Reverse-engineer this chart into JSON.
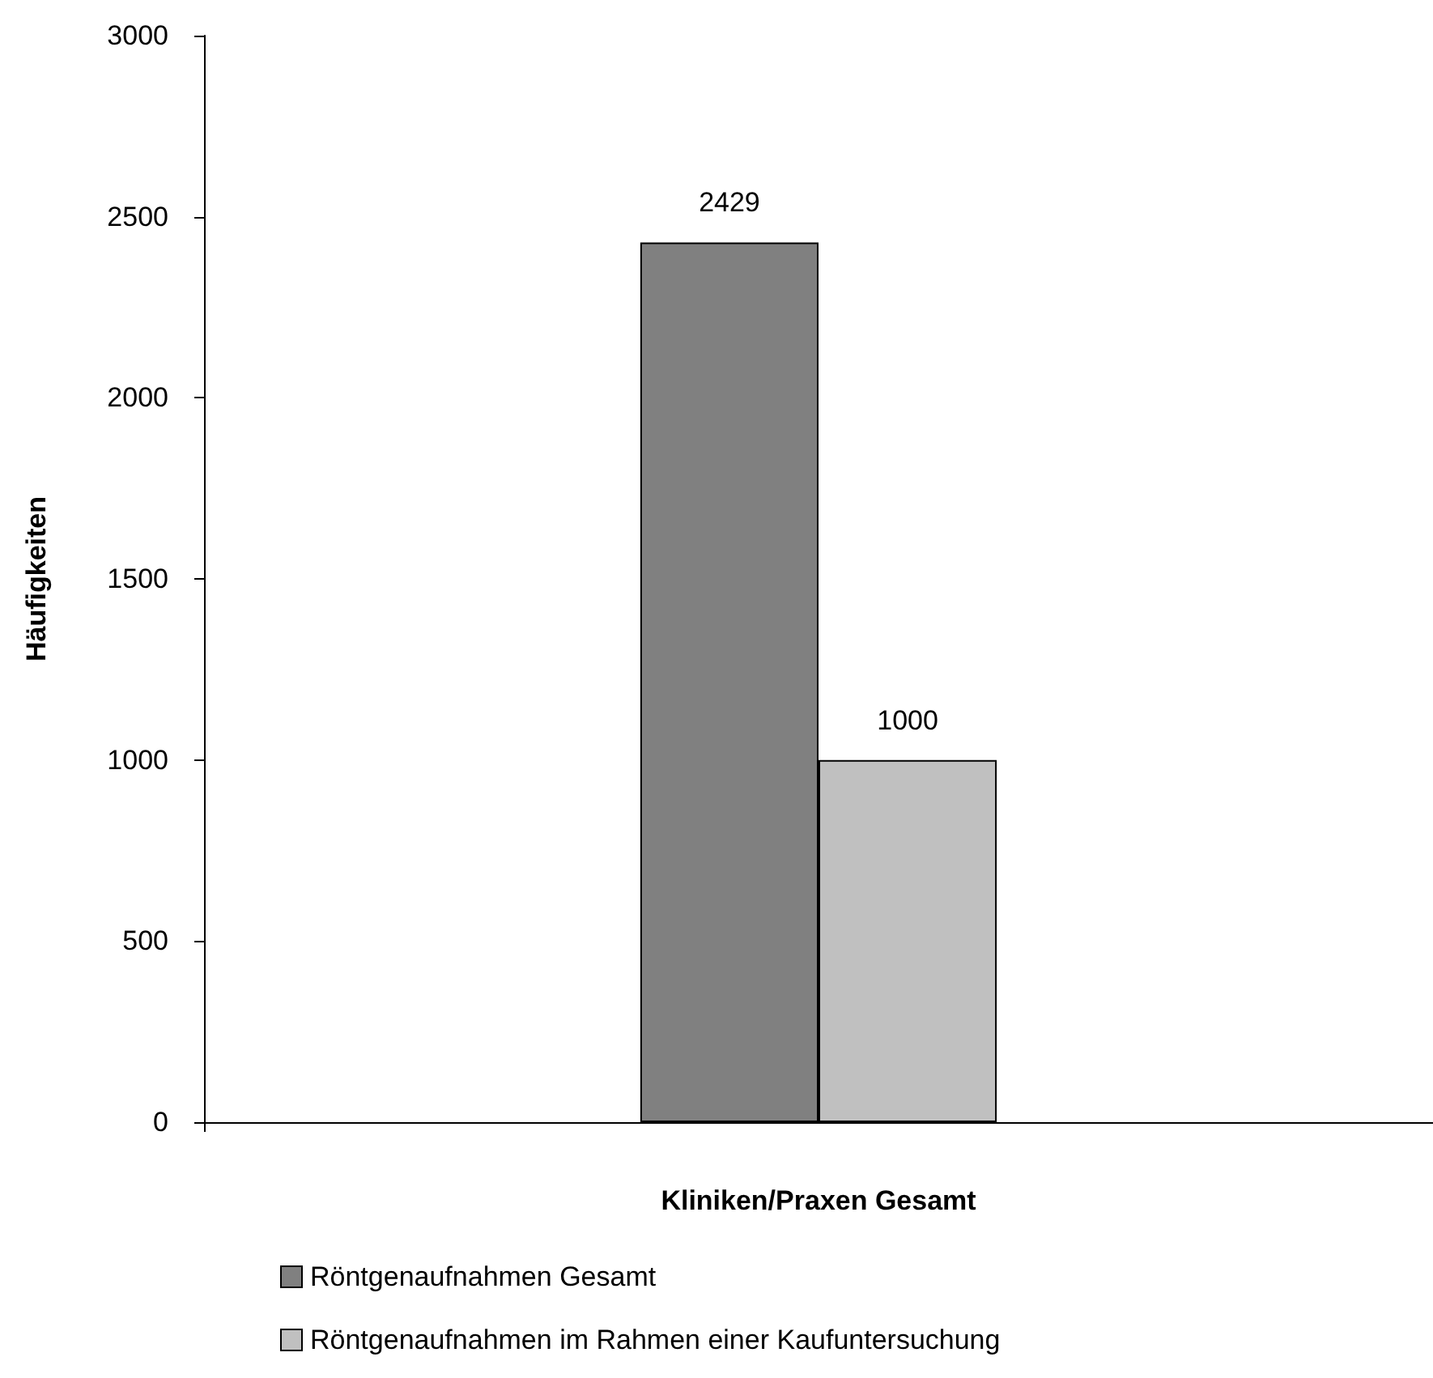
{
  "chart_data": {
    "type": "bar",
    "xlabel": "Kliniken/Praxen Gesamt",
    "ylabel": "Häufigkeiten",
    "categories": [
      null
    ],
    "series": [
      {
        "name": "Röntgenaufnahmen Gesamt",
        "color": "#808080",
        "values": [
          2429
        ]
      },
      {
        "name": "Röntgenaufnahmen im Rahmen einer Kaufuntersuchung",
        "color": "#c0c0c0",
        "values": [
          1000
        ]
      }
    ],
    "ylim": [
      0,
      3000
    ],
    "yticks": [
      0,
      500,
      1000,
      1500,
      2000,
      2500,
      3000
    ],
    "grid": false,
    "legend": "bottom",
    "data_labels": true
  }
}
